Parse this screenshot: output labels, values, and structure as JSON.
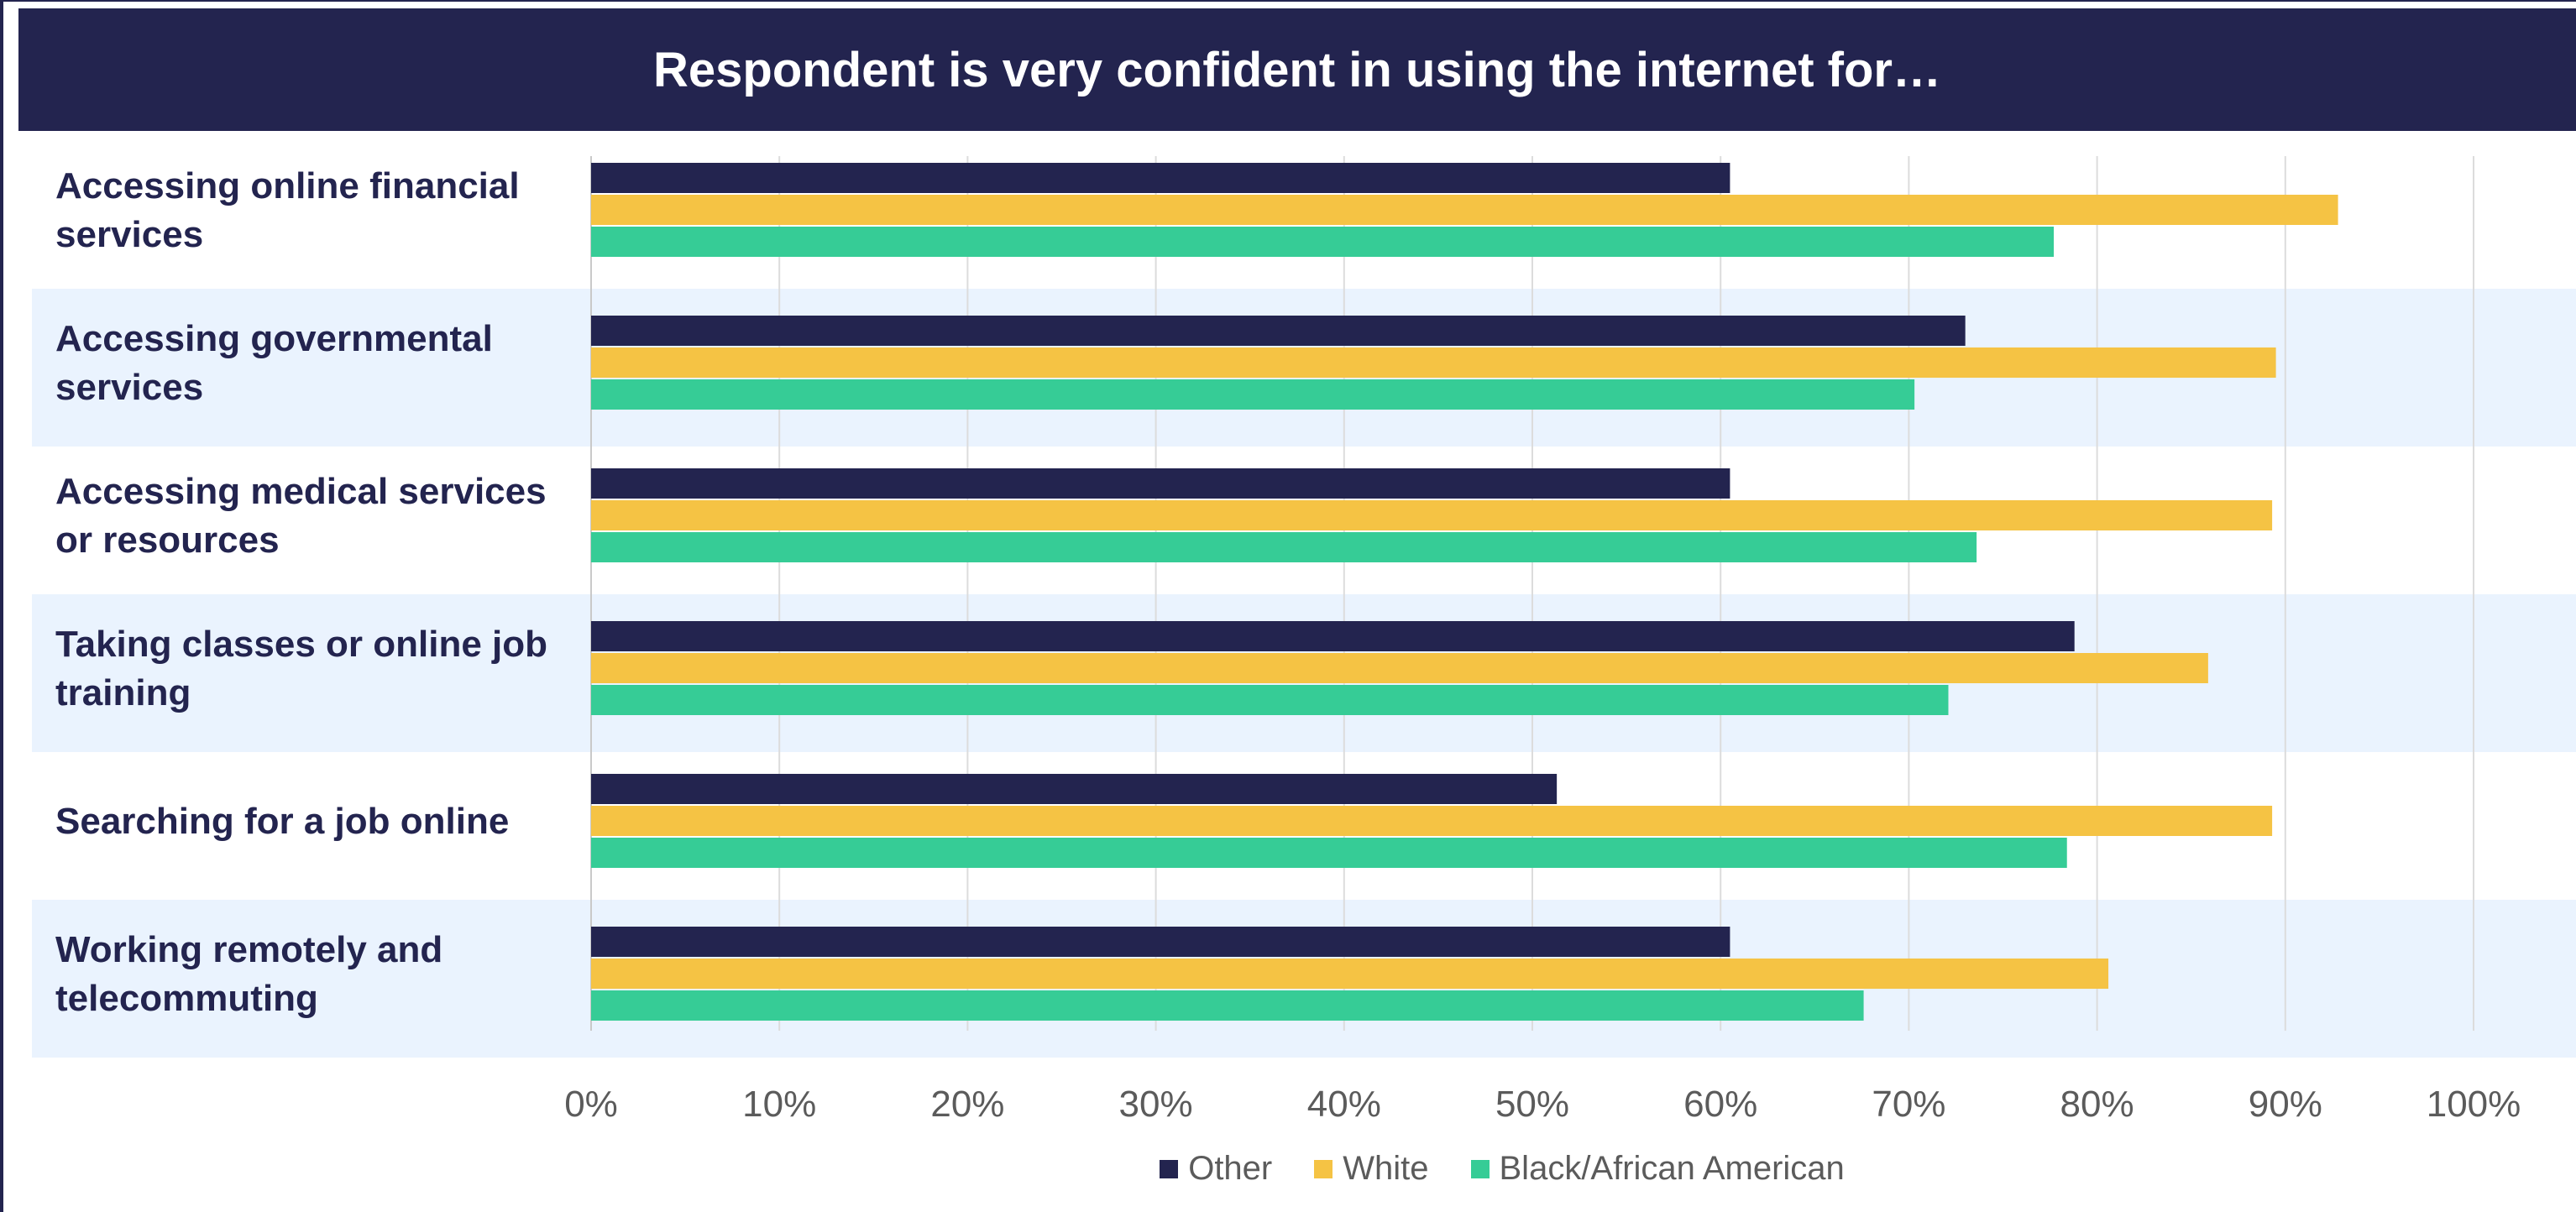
{
  "chart_data": {
    "type": "bar",
    "orientation": "horizontal",
    "title": "Respondent is very confident in using the internet for…",
    "categories": [
      "Accessing online financial services",
      "Accessing governmental services",
      "Accessing medical services or resources",
      "Taking classes or online job training",
      "Searching for a job online",
      "Working remotely and telecommuting"
    ],
    "series": [
      {
        "name": "Other",
        "color": "#23244f",
        "values": [
          60.5,
          73.0,
          60.5,
          78.8,
          51.3,
          60.5
        ]
      },
      {
        "name": "White",
        "color": "#f5c344",
        "values": [
          92.8,
          89.5,
          89.3,
          85.9,
          89.3,
          80.6
        ]
      },
      {
        "name": "Black/African American",
        "color": "#36cc96",
        "values": [
          77.7,
          70.3,
          73.6,
          72.1,
          78.4,
          67.6
        ]
      }
    ],
    "xlim": [
      0,
      100
    ],
    "xticks": [
      "0%",
      "10%",
      "20%",
      "30%",
      "40%",
      "50%",
      "60%",
      "70%",
      "80%",
      "90%",
      "100%"
    ],
    "grid": "vertical",
    "legend_position": "bottom"
  }
}
